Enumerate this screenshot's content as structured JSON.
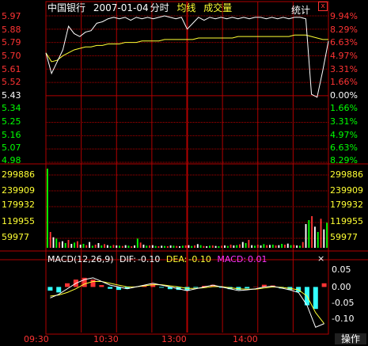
{
  "header": {
    "stock_name": "中国银行",
    "date": "2007-01-04",
    "view": "分时",
    "avg_line_label": "均线",
    "volume_label": "成交量",
    "stats_label": "统计",
    "close_glyph": "x"
  },
  "colors": {
    "up": "#ff3333",
    "down": "#00ff00",
    "price_line": "#ffffff",
    "avg_line": "#ffff33",
    "grid": "#b00000",
    "macd_label": "#ff33ff",
    "dea_line": "#ffff33",
    "dif_line": "#ffffff",
    "neg_bar": "#33ffff",
    "axis_time": "#ff3333"
  },
  "price_axis": {
    "left": [
      "5.97",
      "5.88",
      "5.79",
      "5.70",
      "5.61",
      "5.52",
      "5.43",
      "5.34",
      "5.25",
      "5.16",
      "5.07",
      "4.98"
    ],
    "right": [
      "9.94%",
      "8.29%",
      "6.63%",
      "4.97%",
      "3.31%",
      "1.66%",
      "0.00%",
      "1.66%",
      "3.31%",
      "4.97%",
      "6.63%",
      "8.29%"
    ],
    "base": "5.43",
    "base_pct": "0.00%"
  },
  "volume_axis": {
    "left": [
      "299886",
      "239909",
      "179932",
      "119955",
      "59977"
    ],
    "right": [
      "299886",
      "239909",
      "179932",
      "119955",
      "59977"
    ]
  },
  "macd": {
    "title": "MACD(12,26,9)",
    "dif_label": "DIF:",
    "dif_value": "-0.10",
    "dea_label": "DEA:",
    "dea_value": "-0.10",
    "macd_label": "MACD:",
    "macd_value": "0.01",
    "close_glyph": "×",
    "axis": [
      "0.05",
      "0.00",
      "-0.05",
      "-0.10"
    ]
  },
  "time_axis": [
    "09:30",
    "10:30",
    "13:00",
    "14:00"
  ],
  "operation_button": "操作",
  "chart_data": {
    "type": "line",
    "x_range": [
      "09:30",
      "15:00"
    ],
    "price": {
      "ylim": [
        4.98,
        5.97
      ],
      "base": 5.43,
      "times_fraction": [
        0,
        0.02,
        0.04,
        0.06,
        0.08,
        0.1,
        0.12,
        0.14,
        0.16,
        0.18,
        0.2,
        0.22,
        0.24,
        0.26,
        0.28,
        0.3,
        0.32,
        0.34,
        0.36,
        0.38,
        0.4,
        0.42,
        0.44,
        0.46,
        0.48,
        0.5,
        0.52,
        0.54,
        0.56,
        0.58,
        0.6,
        0.62,
        0.64,
        0.66,
        0.68,
        0.7,
        0.72,
        0.74,
        0.76,
        0.78,
        0.8,
        0.82,
        0.84,
        0.86,
        0.88,
        0.9,
        0.92,
        0.94,
        0.96,
        0.98,
        1.0
      ],
      "price": [
        5.72,
        5.58,
        5.66,
        5.74,
        5.9,
        5.85,
        5.83,
        5.86,
        5.87,
        5.92,
        5.93,
        5.95,
        5.96,
        5.95,
        5.96,
        5.94,
        5.96,
        5.95,
        5.96,
        5.95,
        5.96,
        5.97,
        5.96,
        5.95,
        5.96,
        5.88,
        5.92,
        5.96,
        5.94,
        5.96,
        5.95,
        5.96,
        5.95,
        5.96,
        5.95,
        5.96,
        5.95,
        5.96,
        5.96,
        5.95,
        5.96,
        5.95,
        5.96,
        5.95,
        5.96,
        5.96,
        5.95,
        5.44,
        5.42,
        5.6,
        5.8
      ],
      "avg": [
        5.72,
        5.66,
        5.67,
        5.7,
        5.72,
        5.74,
        5.75,
        5.76,
        5.76,
        5.77,
        5.77,
        5.78,
        5.78,
        5.78,
        5.79,
        5.79,
        5.79,
        5.8,
        5.8,
        5.8,
        5.8,
        5.81,
        5.81,
        5.81,
        5.81,
        5.81,
        5.81,
        5.82,
        5.82,
        5.82,
        5.82,
        5.82,
        5.82,
        5.82,
        5.83,
        5.83,
        5.83,
        5.83,
        5.83,
        5.83,
        5.83,
        5.83,
        5.83,
        5.83,
        5.84,
        5.84,
        5.84,
        5.83,
        5.82,
        5.81,
        5.81
      ]
    },
    "volume": {
      "ylim": [
        0,
        299886
      ],
      "bars": [
        305000,
        60000,
        40000,
        35000,
        22000,
        25000,
        18000,
        30000,
        15000,
        20000,
        25000,
        12000,
        15000,
        10000,
        22000,
        8000,
        12000,
        18000,
        9000,
        14000,
        10000,
        7000,
        11000,
        9000,
        8000,
        7000,
        10000,
        8000,
        6000,
        9000,
        35000,
        20000,
        12000,
        8000,
        9000,
        10000,
        7000,
        6000,
        8000,
        7000,
        6000,
        9000,
        8000,
        7000,
        6000,
        8000,
        9000,
        10000,
        7000,
        9000,
        14000,
        10000,
        7000,
        6000,
        8000,
        9000,
        7000,
        6000,
        8000,
        9000,
        7000,
        12000,
        9000,
        10000,
        13000,
        22000,
        18000,
        30000,
        10000,
        8000,
        12000,
        9000,
        14000,
        10000,
        11000,
        12000,
        9000,
        10000,
        15000,
        12000,
        16000,
        10000,
        11000,
        9000,
        8000,
        22000,
        90000,
        105000,
        120000,
        80000,
        60000,
        110000,
        70000,
        95000
      ]
    },
    "macd": {
      "ylim": [
        -0.12,
        0.07
      ],
      "dif": [
        -0.03,
        -0.02,
        -0.005,
        0.01,
        0.02,
        0.025,
        0.015,
        0.005,
        0.0,
        -0.005,
        0.0,
        0.005,
        0.01,
        0.005,
        0.0,
        -0.005,
        -0.01,
        -0.005,
        0.0,
        0.005,
        0.0,
        -0.005,
        -0.01,
        -0.008,
        -0.005,
        0.0,
        0.002,
        -0.003,
        -0.008,
        -0.015,
        -0.05,
        -0.11,
        -0.1
      ],
      "dea": [
        -0.025,
        -0.022,
        -0.015,
        -0.005,
        0.008,
        0.015,
        0.015,
        0.01,
        0.005,
        0.0,
        0.0,
        0.003,
        0.006,
        0.006,
        0.003,
        0.0,
        -0.004,
        -0.004,
        -0.002,
        0.001,
        0.001,
        -0.002,
        -0.005,
        -0.006,
        -0.006,
        -0.003,
        0.0,
        -0.001,
        -0.004,
        -0.008,
        -0.025,
        -0.07,
        -0.1
      ],
      "hist": [
        -0.01,
        -0.015,
        0.01,
        0.02,
        0.025,
        0.02,
        0.005,
        -0.005,
        -0.008,
        -0.005,
        0.0,
        0.005,
        0.008,
        -0.002,
        -0.006,
        -0.008,
        -0.01,
        -0.002,
        0.003,
        0.006,
        -0.002,
        -0.006,
        -0.008,
        -0.004,
        0.001,
        0.006,
        0.004,
        -0.004,
        -0.008,
        -0.014,
        -0.05,
        -0.06,
        0.01
      ]
    }
  }
}
